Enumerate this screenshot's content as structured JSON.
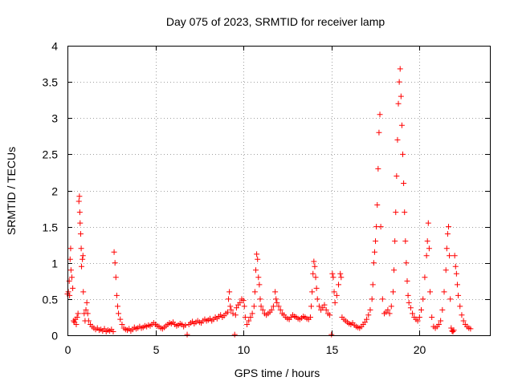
{
  "chart_data": {
    "type": "scatter",
    "title": "Day 075 of 2023, SRMTID for receiver lamp",
    "xlabel": "GPS time / hours",
    "ylabel": "SRMTID / TECUs",
    "xlim": [
      0,
      24
    ],
    "ylim": [
      0,
      4
    ],
    "xticks": [
      "0",
      "5",
      "10",
      "15",
      "20"
    ],
    "yticks": [
      "0",
      "0.5",
      "1",
      "1.5",
      "2",
      "2.5",
      "3",
      "3.5",
      "4"
    ],
    "grid": true,
    "marker": "+",
    "color": "#ff0000",
    "series": [
      {
        "name": "SRMTID",
        "points": [
          [
            0.0,
            0.57
          ],
          [
            0.05,
            0.6
          ],
          [
            0.1,
            0.75
          ],
          [
            0.12,
            0.55
          ],
          [
            0.15,
            1.05
          ],
          [
            0.18,
            1.2
          ],
          [
            0.2,
            0.9
          ],
          [
            0.25,
            0.8
          ],
          [
            0.3,
            0.65
          ],
          [
            0.35,
            0.2
          ],
          [
            0.4,
            0.18
          ],
          [
            0.45,
            0.22
          ],
          [
            0.5,
            0.15
          ],
          [
            0.55,
            0.25
          ],
          [
            0.6,
            0.3
          ],
          [
            0.65,
            1.85
          ],
          [
            0.68,
            1.92
          ],
          [
            0.7,
            1.7
          ],
          [
            0.72,
            1.55
          ],
          [
            0.75,
            1.4
          ],
          [
            0.78,
            1.2
          ],
          [
            0.8,
            0.95
          ],
          [
            0.85,
            1.05
          ],
          [
            0.88,
            1.1
          ],
          [
            0.9,
            0.6
          ],
          [
            0.95,
            0.3
          ],
          [
            1.0,
            0.2
          ],
          [
            1.05,
            0.35
          ],
          [
            1.1,
            0.45
          ],
          [
            1.15,
            0.3
          ],
          [
            1.2,
            0.2
          ],
          [
            1.3,
            0.15
          ],
          [
            1.4,
            0.12
          ],
          [
            1.5,
            0.1
          ],
          [
            1.6,
            0.08
          ],
          [
            1.7,
            0.1
          ],
          [
            1.8,
            0.07
          ],
          [
            1.9,
            0.08
          ],
          [
            2.0,
            0.06
          ],
          [
            2.1,
            0.09
          ],
          [
            2.2,
            0.05
          ],
          [
            2.3,
            0.07
          ],
          [
            2.4,
            0.06
          ],
          [
            2.5,
            0.08
          ],
          [
            2.6,
            0.05
          ],
          [
            2.65,
            1.15
          ],
          [
            2.7,
            1.0
          ],
          [
            2.75,
            0.8
          ],
          [
            2.8,
            0.55
          ],
          [
            2.85,
            0.4
          ],
          [
            2.9,
            0.3
          ],
          [
            3.0,
            0.22
          ],
          [
            3.1,
            0.15
          ],
          [
            3.2,
            0.1
          ],
          [
            3.3,
            0.08
          ],
          [
            3.4,
            0.07
          ],
          [
            3.5,
            0.09
          ],
          [
            3.6,
            0.06
          ],
          [
            3.7,
            0.08
          ],
          [
            3.8,
            0.11
          ],
          [
            3.9,
            0.09
          ],
          [
            4.0,
            0.1
          ],
          [
            4.1,
            0.12
          ],
          [
            4.2,
            0.1
          ],
          [
            4.3,
            0.11
          ],
          [
            4.4,
            0.13
          ],
          [
            4.5,
            0.12
          ],
          [
            4.6,
            0.14
          ],
          [
            4.7,
            0.13
          ],
          [
            4.8,
            0.15
          ],
          [
            4.9,
            0.17
          ],
          [
            5.0,
            0.15
          ],
          [
            5.1,
            0.13
          ],
          [
            5.2,
            0.12
          ],
          [
            5.3,
            0.1
          ],
          [
            5.4,
            0.09
          ],
          [
            5.5,
            0.11
          ],
          [
            5.6,
            0.13
          ],
          [
            5.7,
            0.15
          ],
          [
            5.8,
            0.17
          ],
          [
            5.9,
            0.16
          ],
          [
            6.0,
            0.18
          ],
          [
            6.1,
            0.15
          ],
          [
            6.2,
            0.13
          ],
          [
            6.3,
            0.14
          ],
          [
            6.4,
            0.16
          ],
          [
            6.5,
            0.15
          ],
          [
            6.6,
            0.12
          ],
          [
            6.7,
            0.14
          ],
          [
            6.8,
            0.01
          ],
          [
            6.9,
            0.15
          ],
          [
            7.0,
            0.17
          ],
          [
            7.1,
            0.19
          ],
          [
            7.2,
            0.16
          ],
          [
            7.3,
            0.18
          ],
          [
            7.4,
            0.2
          ],
          [
            7.5,
            0.18
          ],
          [
            7.6,
            0.17
          ],
          [
            7.7,
            0.2
          ],
          [
            7.8,
            0.22
          ],
          [
            7.9,
            0.2
          ],
          [
            8.0,
            0.21
          ],
          [
            8.1,
            0.23
          ],
          [
            8.2,
            0.2
          ],
          [
            8.3,
            0.22
          ],
          [
            8.4,
            0.25
          ],
          [
            8.5,
            0.23
          ],
          [
            8.6,
            0.26
          ],
          [
            8.7,
            0.28
          ],
          [
            8.8,
            0.25
          ],
          [
            8.9,
            0.27
          ],
          [
            9.0,
            0.3
          ],
          [
            9.1,
            0.32
          ],
          [
            9.15,
            0.5
          ],
          [
            9.2,
            0.6
          ],
          [
            9.25,
            0.4
          ],
          [
            9.3,
            0.35
          ],
          [
            9.4,
            0.3
          ],
          [
            9.5,
            0.01
          ],
          [
            9.55,
            0.28
          ],
          [
            9.6,
            0.38
          ],
          [
            9.7,
            0.42
          ],
          [
            9.8,
            0.45
          ],
          [
            9.9,
            0.5
          ],
          [
            10.0,
            0.48
          ],
          [
            10.05,
            0.4
          ],
          [
            10.1,
            0.25
          ],
          [
            10.2,
            0.15
          ],
          [
            10.3,
            0.2
          ],
          [
            10.4,
            0.25
          ],
          [
            10.5,
            0.3
          ],
          [
            10.6,
            0.4
          ],
          [
            10.65,
            0.6
          ],
          [
            10.7,
            0.9
          ],
          [
            10.75,
            1.12
          ],
          [
            10.8,
            1.05
          ],
          [
            10.85,
            0.8
          ],
          [
            10.9,
            0.7
          ],
          [
            10.95,
            0.5
          ],
          [
            11.0,
            0.4
          ],
          [
            11.1,
            0.35
          ],
          [
            11.2,
            0.3
          ],
          [
            11.3,
            0.28
          ],
          [
            11.4,
            0.3
          ],
          [
            11.5,
            0.32
          ],
          [
            11.6,
            0.35
          ],
          [
            11.7,
            0.4
          ],
          [
            11.8,
            0.6
          ],
          [
            11.85,
            0.5
          ],
          [
            11.9,
            0.45
          ],
          [
            12.0,
            0.4
          ],
          [
            12.1,
            0.35
          ],
          [
            12.2,
            0.3
          ],
          [
            12.3,
            0.28
          ],
          [
            12.4,
            0.25
          ],
          [
            12.5,
            0.23
          ],
          [
            12.6,
            0.22
          ],
          [
            12.7,
            0.25
          ],
          [
            12.8,
            0.28
          ],
          [
            12.9,
            0.26
          ],
          [
            13.0,
            0.25
          ],
          [
            13.1,
            0.23
          ],
          [
            13.2,
            0.22
          ],
          [
            13.3,
            0.24
          ],
          [
            13.4,
            0.26
          ],
          [
            13.5,
            0.25
          ],
          [
            13.6,
            0.23
          ],
          [
            13.7,
            0.22
          ],
          [
            13.8,
            0.25
          ],
          [
            13.85,
            0.4
          ],
          [
            13.9,
            0.6
          ],
          [
            13.95,
            0.85
          ],
          [
            14.0,
            1.02
          ],
          [
            14.05,
            0.95
          ],
          [
            14.1,
            0.8
          ],
          [
            14.15,
            0.65
          ],
          [
            14.2,
            0.5
          ],
          [
            14.3,
            0.4
          ],
          [
            14.4,
            0.35
          ],
          [
            14.5,
            0.38
          ],
          [
            14.6,
            0.42
          ],
          [
            14.7,
            0.35
          ],
          [
            14.8,
            0.3
          ],
          [
            14.9,
            0.28
          ],
          [
            15.0,
            0.01
          ],
          [
            15.05,
            0.85
          ],
          [
            15.1,
            0.8
          ],
          [
            15.15,
            0.6
          ],
          [
            15.2,
            0.45
          ],
          [
            15.3,
            0.55
          ],
          [
            15.4,
            0.7
          ],
          [
            15.5,
            0.85
          ],
          [
            15.55,
            0.8
          ],
          [
            15.6,
            0.25
          ],
          [
            15.7,
            0.22
          ],
          [
            15.8,
            0.2
          ],
          [
            15.9,
            0.18
          ],
          [
            16.0,
            0.16
          ],
          [
            16.1,
            0.15
          ],
          [
            16.2,
            0.17
          ],
          [
            16.3,
            0.14
          ],
          [
            16.4,
            0.12
          ],
          [
            16.5,
            0.11
          ],
          [
            16.6,
            0.1
          ],
          [
            16.7,
            0.12
          ],
          [
            16.8,
            0.15
          ],
          [
            16.9,
            0.18
          ],
          [
            17.0,
            0.22
          ],
          [
            17.1,
            0.28
          ],
          [
            17.2,
            0.35
          ],
          [
            17.3,
            0.5
          ],
          [
            17.35,
            0.7
          ],
          [
            17.4,
            1.0
          ],
          [
            17.45,
            1.15
          ],
          [
            17.5,
            1.3
          ],
          [
            17.55,
            1.5
          ],
          [
            17.6,
            1.8
          ],
          [
            17.65,
            2.3
          ],
          [
            17.7,
            2.8
          ],
          [
            17.75,
            3.05
          ],
          [
            17.8,
            1.5
          ],
          [
            17.9,
            0.5
          ],
          [
            18.0,
            0.3
          ],
          [
            18.1,
            0.32
          ],
          [
            18.2,
            0.35
          ],
          [
            18.3,
            0.3
          ],
          [
            18.4,
            0.4
          ],
          [
            18.5,
            0.6
          ],
          [
            18.55,
            0.9
          ],
          [
            18.6,
            1.3
          ],
          [
            18.65,
            1.7
          ],
          [
            18.7,
            2.2
          ],
          [
            18.75,
            2.7
          ],
          [
            18.8,
            3.2
          ],
          [
            18.85,
            3.5
          ],
          [
            18.9,
            3.68
          ],
          [
            18.95,
            3.3
          ],
          [
            19.0,
            2.9
          ],
          [
            19.05,
            2.5
          ],
          [
            19.1,
            2.1
          ],
          [
            19.15,
            1.7
          ],
          [
            19.2,
            1.3
          ],
          [
            19.25,
            1.0
          ],
          [
            19.3,
            0.75
          ],
          [
            19.35,
            0.55
          ],
          [
            19.4,
            0.45
          ],
          [
            19.5,
            0.38
          ],
          [
            19.6,
            0.3
          ],
          [
            19.7,
            0.25
          ],
          [
            19.8,
            0.22
          ],
          [
            19.9,
            0.2
          ],
          [
            20.0,
            0.25
          ],
          [
            20.1,
            0.35
          ],
          [
            20.2,
            0.5
          ],
          [
            20.3,
            0.8
          ],
          [
            20.4,
            1.1
          ],
          [
            20.45,
            1.3
          ],
          [
            20.5,
            1.55
          ],
          [
            20.55,
            1.2
          ],
          [
            20.6,
            0.6
          ],
          [
            20.7,
            0.25
          ],
          [
            20.8,
            0.12
          ],
          [
            20.9,
            0.1
          ],
          [
            21.0,
            0.12
          ],
          [
            21.1,
            0.15
          ],
          [
            21.2,
            0.2
          ],
          [
            21.3,
            0.35
          ],
          [
            21.4,
            0.6
          ],
          [
            21.5,
            0.9
          ],
          [
            21.55,
            1.2
          ],
          [
            21.6,
            1.4
          ],
          [
            21.65,
            1.5
          ],
          [
            21.7,
            1.1
          ],
          [
            21.75,
            0.5
          ],
          [
            21.8,
            0.1
          ],
          [
            21.85,
            0.06
          ],
          [
            21.9,
            0.05
          ],
          [
            21.95,
            0.07
          ],
          [
            22.0,
            1.1
          ],
          [
            22.05,
            0.95
          ],
          [
            22.1,
            0.85
          ],
          [
            22.15,
            0.7
          ],
          [
            22.2,
            0.55
          ],
          [
            22.3,
            0.4
          ],
          [
            22.4,
            0.28
          ],
          [
            22.5,
            0.2
          ],
          [
            22.6,
            0.15
          ],
          [
            22.7,
            0.12
          ],
          [
            22.8,
            0.1
          ],
          [
            22.9,
            0.09
          ]
        ]
      }
    ]
  }
}
